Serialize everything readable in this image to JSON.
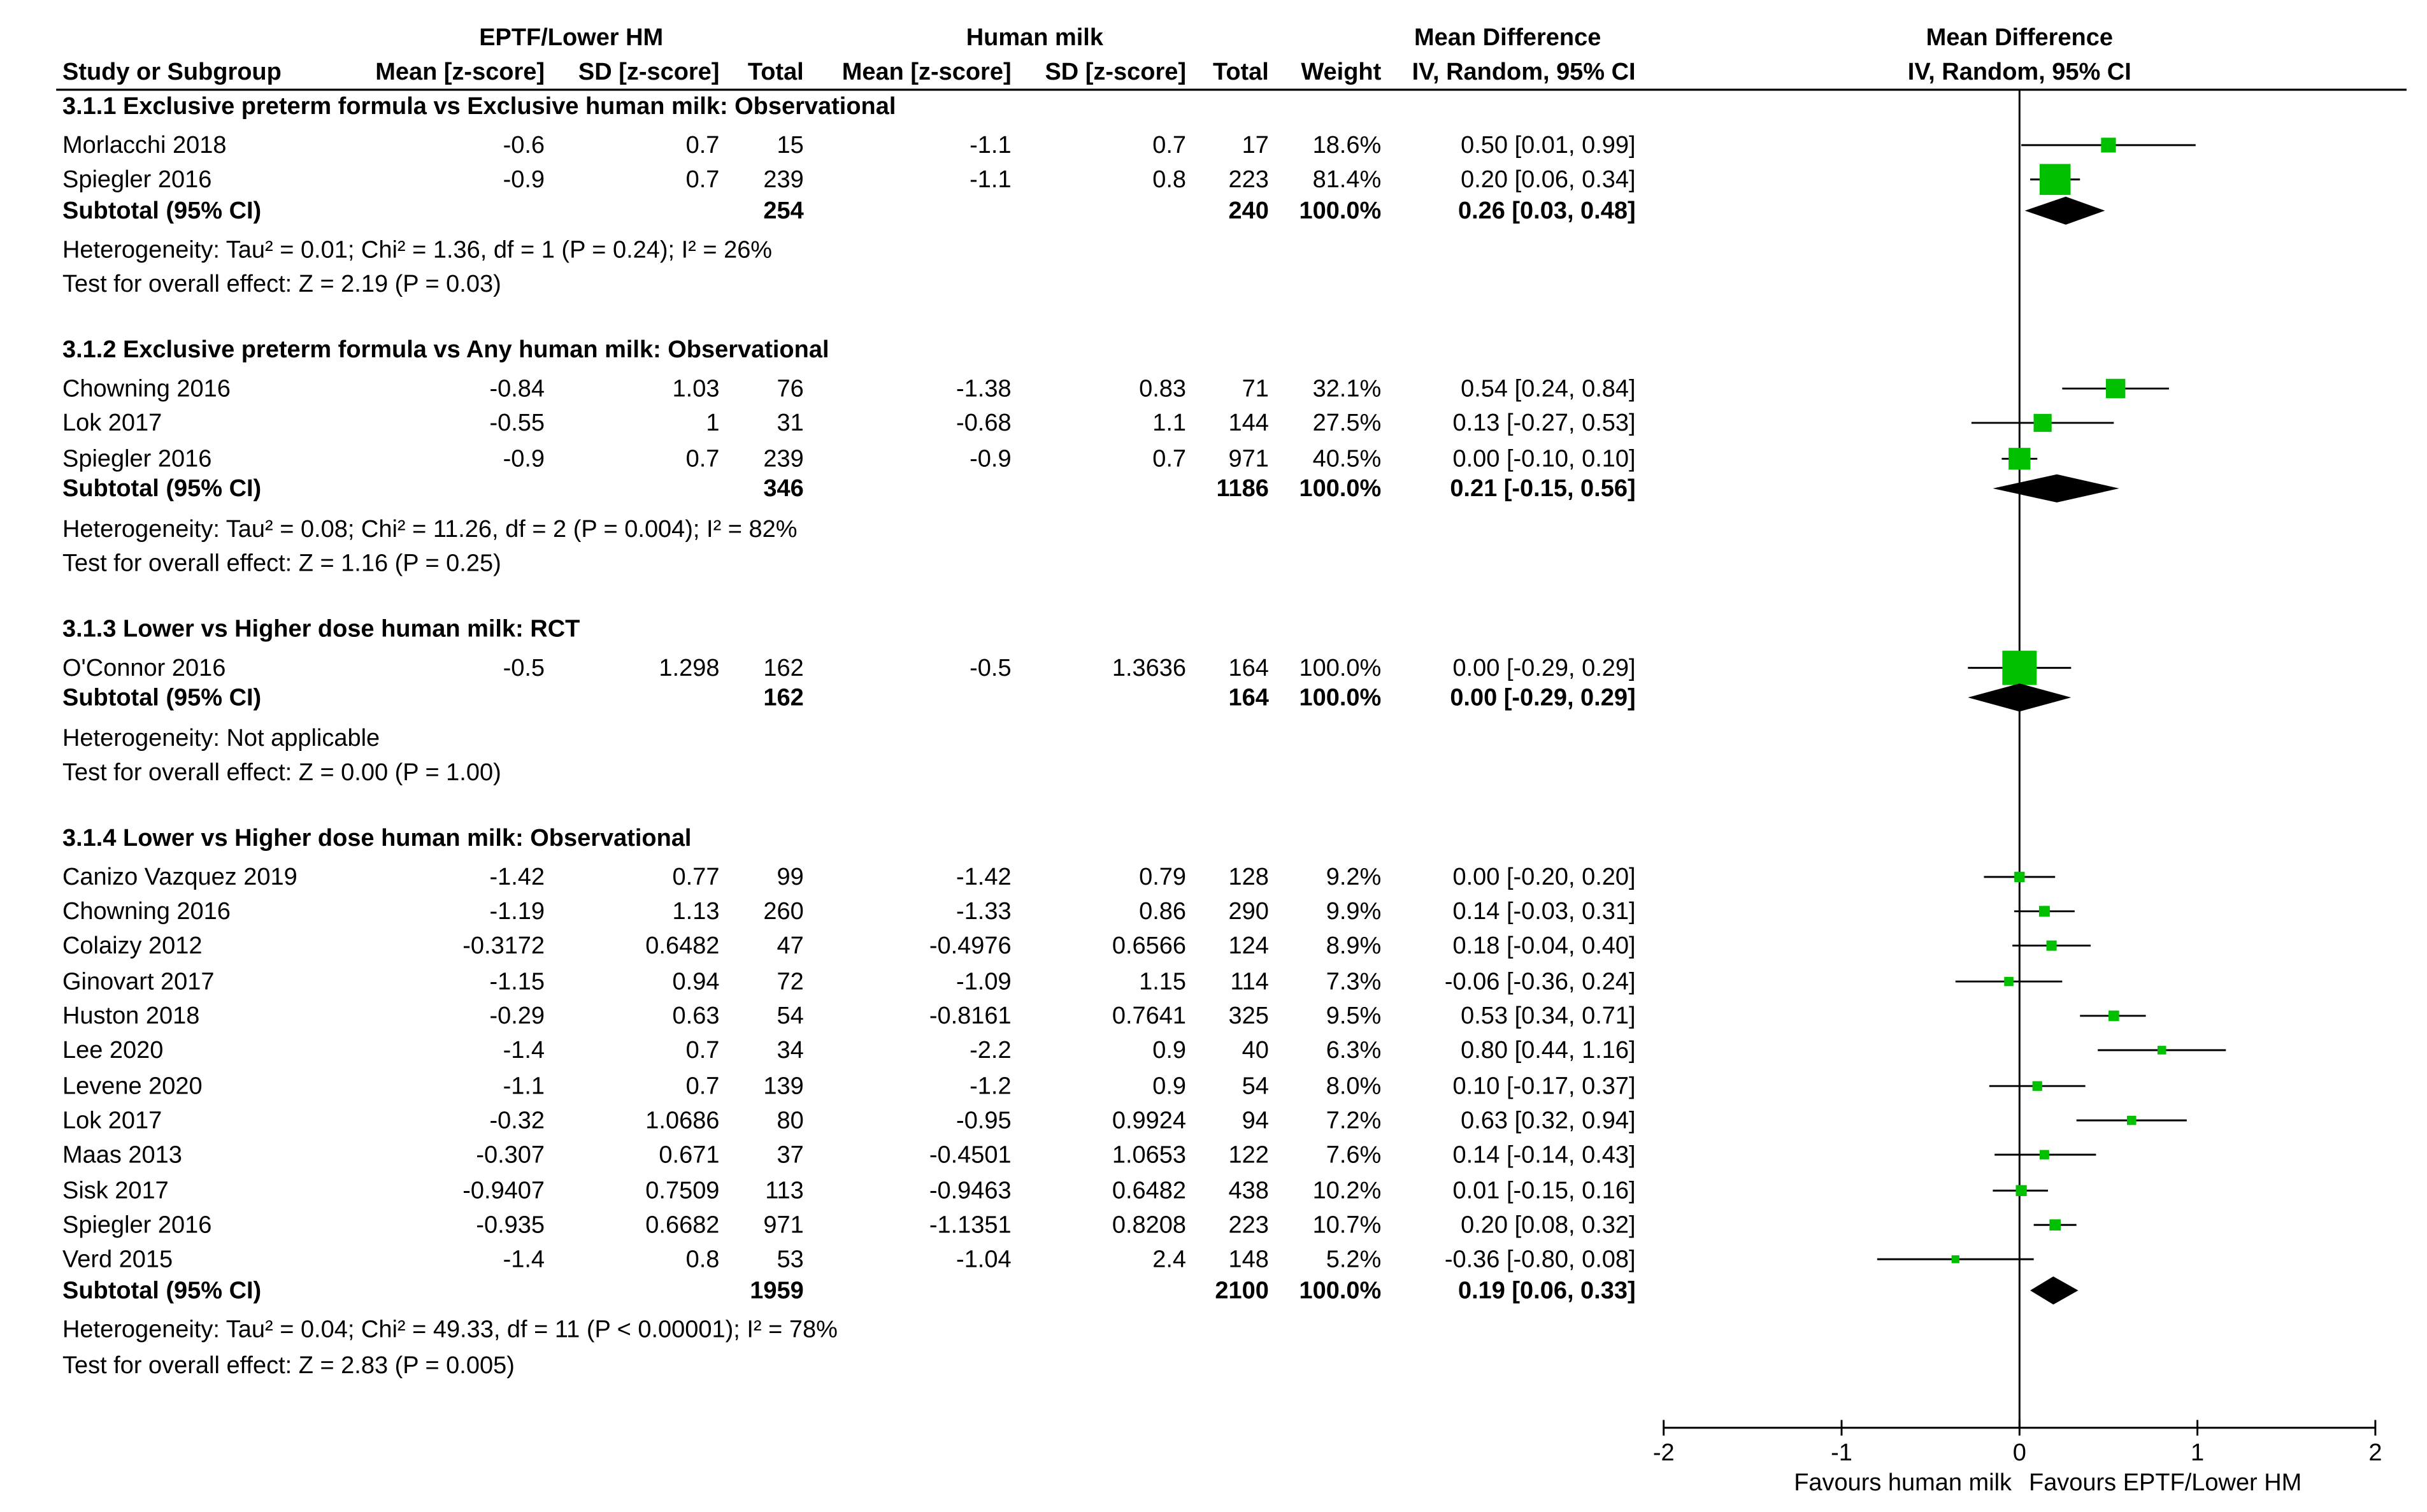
{
  "headers": {
    "group1": "EPTF/Lower HM",
    "group2": "Human milk",
    "md": "Mean Difference",
    "md_plot": "Mean Difference",
    "study": "Study or Subgroup",
    "mean1": "Mean [z-score]",
    "sd1": "SD [z-score]",
    "total1": "Total",
    "mean2": "Mean [z-score]",
    "sd2": "SD [z-score]",
    "total2": "Total",
    "weight": "Weight",
    "ci": "IV, Random, 95% CI",
    "ci_plot": "IV, Random, 95% CI"
  },
  "subgroups": [
    {
      "title": "3.1.1 Exclusive preterm formula vs Exclusive human milk: Observational",
      "studies": [
        {
          "name": "Morlacchi 2018",
          "m1": "-0.6",
          "sd1": "0.7",
          "n1": "15",
          "m2": "-1.1",
          "sd2": "0.7",
          "n2": "17",
          "w": "18.6%",
          "ci": "0.50 [0.01, 0.99]"
        },
        {
          "name": "Spiegler 2016",
          "m1": "-0.9",
          "sd1": "0.7",
          "n1": "239",
          "m2": "-1.1",
          "sd2": "0.8",
          "n2": "223",
          "w": "81.4%",
          "ci": "0.20 [0.06, 0.34]"
        }
      ],
      "subtotal": {
        "label": "Subtotal (95% CI)",
        "n1": "254",
        "n2": "240",
        "w": "100.0%",
        "ci": "0.26 [0.03, 0.48]"
      },
      "heterogeneity": "Heterogeneity: Tau² = 0.01; Chi² = 1.36, df = 1 (P = 0.24); I² = 26%",
      "overall": "Test for overall effect: Z = 2.19 (P = 0.03)"
    },
    {
      "title": "3.1.2 Exclusive preterm formula vs Any human milk: Observational",
      "studies": [
        {
          "name": "Chowning 2016",
          "m1": "-0.84",
          "sd1": "1.03",
          "n1": "76",
          "m2": "-1.38",
          "sd2": "0.83",
          "n2": "71",
          "w": "32.1%",
          "ci": "0.54 [0.24, 0.84]"
        },
        {
          "name": "Lok 2017",
          "m1": "-0.55",
          "sd1": "1",
          "n1": "31",
          "m2": "-0.68",
          "sd2": "1.1",
          "n2": "144",
          "w": "27.5%",
          "ci": "0.13 [-0.27, 0.53]"
        },
        {
          "name": "Spiegler 2016",
          "m1": "-0.9",
          "sd1": "0.7",
          "n1": "239",
          "m2": "-0.9",
          "sd2": "0.7",
          "n2": "971",
          "w": "40.5%",
          "ci": "0.00 [-0.10, 0.10]"
        }
      ],
      "subtotal": {
        "label": "Subtotal (95% CI)",
        "n1": "346",
        "n2": "1186",
        "w": "100.0%",
        "ci": "0.21 [-0.15, 0.56]"
      },
      "heterogeneity": "Heterogeneity: Tau² = 0.08; Chi² = 11.26, df = 2 (P = 0.004); I² = 82%",
      "overall": "Test for overall effect: Z = 1.16 (P = 0.25)"
    },
    {
      "title": "3.1.3 Lower vs Higher dose human milk: RCT",
      "studies": [
        {
          "name": "O'Connor 2016",
          "m1": "-0.5",
          "sd1": "1.298",
          "n1": "162",
          "m2": "-0.5",
          "sd2": "1.3636",
          "n2": "164",
          "w": "100.0%",
          "ci": "0.00 [-0.29, 0.29]"
        }
      ],
      "subtotal": {
        "label": "Subtotal (95% CI)",
        "n1": "162",
        "n2": "164",
        "w": "100.0%",
        "ci": "0.00 [-0.29, 0.29]"
      },
      "heterogeneity": "Heterogeneity: Not applicable",
      "overall": "Test for overall effect: Z = 0.00 (P = 1.00)"
    },
    {
      "title": "3.1.4 Lower vs Higher dose human milk: Observational",
      "studies": [
        {
          "name": "Canizo Vazquez 2019",
          "m1": "-1.42",
          "sd1": "0.77",
          "n1": "99",
          "m2": "-1.42",
          "sd2": "0.79",
          "n2": "128",
          "w": "9.2%",
          "ci": "0.00 [-0.20, 0.20]"
        },
        {
          "name": "Chowning 2016",
          "m1": "-1.19",
          "sd1": "1.13",
          "n1": "260",
          "m2": "-1.33",
          "sd2": "0.86",
          "n2": "290",
          "w": "9.9%",
          "ci": "0.14 [-0.03, 0.31]"
        },
        {
          "name": "Colaizy 2012",
          "m1": "-0.3172",
          "sd1": "0.6482",
          "n1": "47",
          "m2": "-0.4976",
          "sd2": "0.6566",
          "n2": "124",
          "w": "8.9%",
          "ci": "0.18 [-0.04, 0.40]"
        },
        {
          "name": "Ginovart 2017",
          "m1": "-1.15",
          "sd1": "0.94",
          "n1": "72",
          "m2": "-1.09",
          "sd2": "1.15",
          "n2": "114",
          "w": "7.3%",
          "ci": "-0.06 [-0.36, 0.24]"
        },
        {
          "name": "Huston 2018",
          "m1": "-0.29",
          "sd1": "0.63",
          "n1": "54",
          "m2": "-0.8161",
          "sd2": "0.7641",
          "n2": "325",
          "w": "9.5%",
          "ci": "0.53 [0.34, 0.71]"
        },
        {
          "name": "Lee 2020",
          "m1": "-1.4",
          "sd1": "0.7",
          "n1": "34",
          "m2": "-2.2",
          "sd2": "0.9",
          "n2": "40",
          "w": "6.3%",
          "ci": "0.80 [0.44, 1.16]"
        },
        {
          "name": "Levene 2020",
          "m1": "-1.1",
          "sd1": "0.7",
          "n1": "139",
          "m2": "-1.2",
          "sd2": "0.9",
          "n2": "54",
          "w": "8.0%",
          "ci": "0.10 [-0.17, 0.37]"
        },
        {
          "name": "Lok 2017",
          "m1": "-0.32",
          "sd1": "1.0686",
          "n1": "80",
          "m2": "-0.95",
          "sd2": "0.9924",
          "n2": "94",
          "w": "7.2%",
          "ci": "0.63 [0.32, 0.94]"
        },
        {
          "name": "Maas 2013",
          "m1": "-0.307",
          "sd1": "0.671",
          "n1": "37",
          "m2": "-0.4501",
          "sd2": "1.0653",
          "n2": "122",
          "w": "7.6%",
          "ci": "0.14 [-0.14, 0.43]"
        },
        {
          "name": "Sisk 2017",
          "m1": "-0.9407",
          "sd1": "0.7509",
          "n1": "113",
          "m2": "-0.9463",
          "sd2": "0.6482",
          "n2": "438",
          "w": "10.2%",
          "ci": "0.01 [-0.15, 0.16]"
        },
        {
          "name": "Spiegler 2016",
          "m1": "-0.935",
          "sd1": "0.6682",
          "n1": "971",
          "m2": "-1.1351",
          "sd2": "0.8208",
          "n2": "223",
          "w": "10.7%",
          "ci": "0.20 [0.08, 0.32]"
        },
        {
          "name": "Verd 2015",
          "m1": "-1.4",
          "sd1": "0.8",
          "n1": "53",
          "m2": "-1.04",
          "sd2": "2.4",
          "n2": "148",
          "w": "5.2%",
          "ci": "-0.36 [-0.80, 0.08]"
        }
      ],
      "subtotal": {
        "label": "Subtotal (95% CI)",
        "n1": "1959",
        "n2": "2100",
        "w": "100.0%",
        "ci": "0.19 [0.06, 0.33]"
      },
      "heterogeneity": "Heterogeneity: Tau² = 0.04; Chi² = 49.33, df = 11 (P < 0.00001); I² = 78%",
      "overall": "Test for overall effect: Z = 2.83 (P = 0.005)"
    }
  ],
  "footer": {
    "favours_left": "Favours human milk",
    "favours_right": "Favours EPTF/Lower HM"
  },
  "colors": {
    "marker": "#00c000",
    "diamond": "#000000",
    "line": "#000000"
  },
  "chart_data": {
    "type": "forest",
    "axis": {
      "min": -2,
      "max": 2,
      "ticks": [
        -2,
        -1,
        0,
        1,
        2
      ],
      "tick_labels": [
        "-2",
        "-1",
        "0",
        "1",
        "2"
      ]
    },
    "subgroups": [
      {
        "studies": [
          {
            "name": "Morlacchi 2018",
            "md": 0.5,
            "lo": 0.01,
            "hi": 0.99,
            "weight": 18.6
          },
          {
            "name": "Spiegler 2016",
            "md": 0.2,
            "lo": 0.06,
            "hi": 0.34,
            "weight": 81.4
          }
        ],
        "pooled": {
          "md": 0.26,
          "lo": 0.03,
          "hi": 0.48
        }
      },
      {
        "studies": [
          {
            "name": "Chowning 2016",
            "md": 0.54,
            "lo": 0.24,
            "hi": 0.84,
            "weight": 32.1
          },
          {
            "name": "Lok 2017",
            "md": 0.13,
            "lo": -0.27,
            "hi": 0.53,
            "weight": 27.5
          },
          {
            "name": "Spiegler 2016",
            "md": 0.0,
            "lo": -0.1,
            "hi": 0.1,
            "weight": 40.5
          }
        ],
        "pooled": {
          "md": 0.21,
          "lo": -0.15,
          "hi": 0.56
        }
      },
      {
        "studies": [
          {
            "name": "O'Connor 2016",
            "md": 0.0,
            "lo": -0.29,
            "hi": 0.29,
            "weight": 100.0
          }
        ],
        "pooled": {
          "md": 0.0,
          "lo": -0.29,
          "hi": 0.29
        }
      },
      {
        "studies": [
          {
            "name": "Canizo Vazquez 2019",
            "md": 0.0,
            "lo": -0.2,
            "hi": 0.2,
            "weight": 9.2
          },
          {
            "name": "Chowning 2016",
            "md": 0.14,
            "lo": -0.03,
            "hi": 0.31,
            "weight": 9.9
          },
          {
            "name": "Colaizy 2012",
            "md": 0.18,
            "lo": -0.04,
            "hi": 0.4,
            "weight": 8.9
          },
          {
            "name": "Ginovart 2017",
            "md": -0.06,
            "lo": -0.36,
            "hi": 0.24,
            "weight": 7.3
          },
          {
            "name": "Huston 2018",
            "md": 0.53,
            "lo": 0.34,
            "hi": 0.71,
            "weight": 9.5
          },
          {
            "name": "Lee 2020",
            "md": 0.8,
            "lo": 0.44,
            "hi": 1.16,
            "weight": 6.3
          },
          {
            "name": "Levene 2020",
            "md": 0.1,
            "lo": -0.17,
            "hi": 0.37,
            "weight": 8.0
          },
          {
            "name": "Lok 2017",
            "md": 0.63,
            "lo": 0.32,
            "hi": 0.94,
            "weight": 7.2
          },
          {
            "name": "Maas 2013",
            "md": 0.14,
            "lo": -0.14,
            "hi": 0.43,
            "weight": 7.6
          },
          {
            "name": "Sisk 2017",
            "md": 0.01,
            "lo": -0.15,
            "hi": 0.16,
            "weight": 10.2
          },
          {
            "name": "Spiegler 2016",
            "md": 0.2,
            "lo": 0.08,
            "hi": 0.32,
            "weight": 10.7
          },
          {
            "name": "Verd 2015",
            "md": -0.36,
            "lo": -0.8,
            "hi": 0.08,
            "weight": 5.2
          }
        ],
        "pooled": {
          "md": 0.19,
          "lo": 0.06,
          "hi": 0.33
        }
      }
    ]
  }
}
